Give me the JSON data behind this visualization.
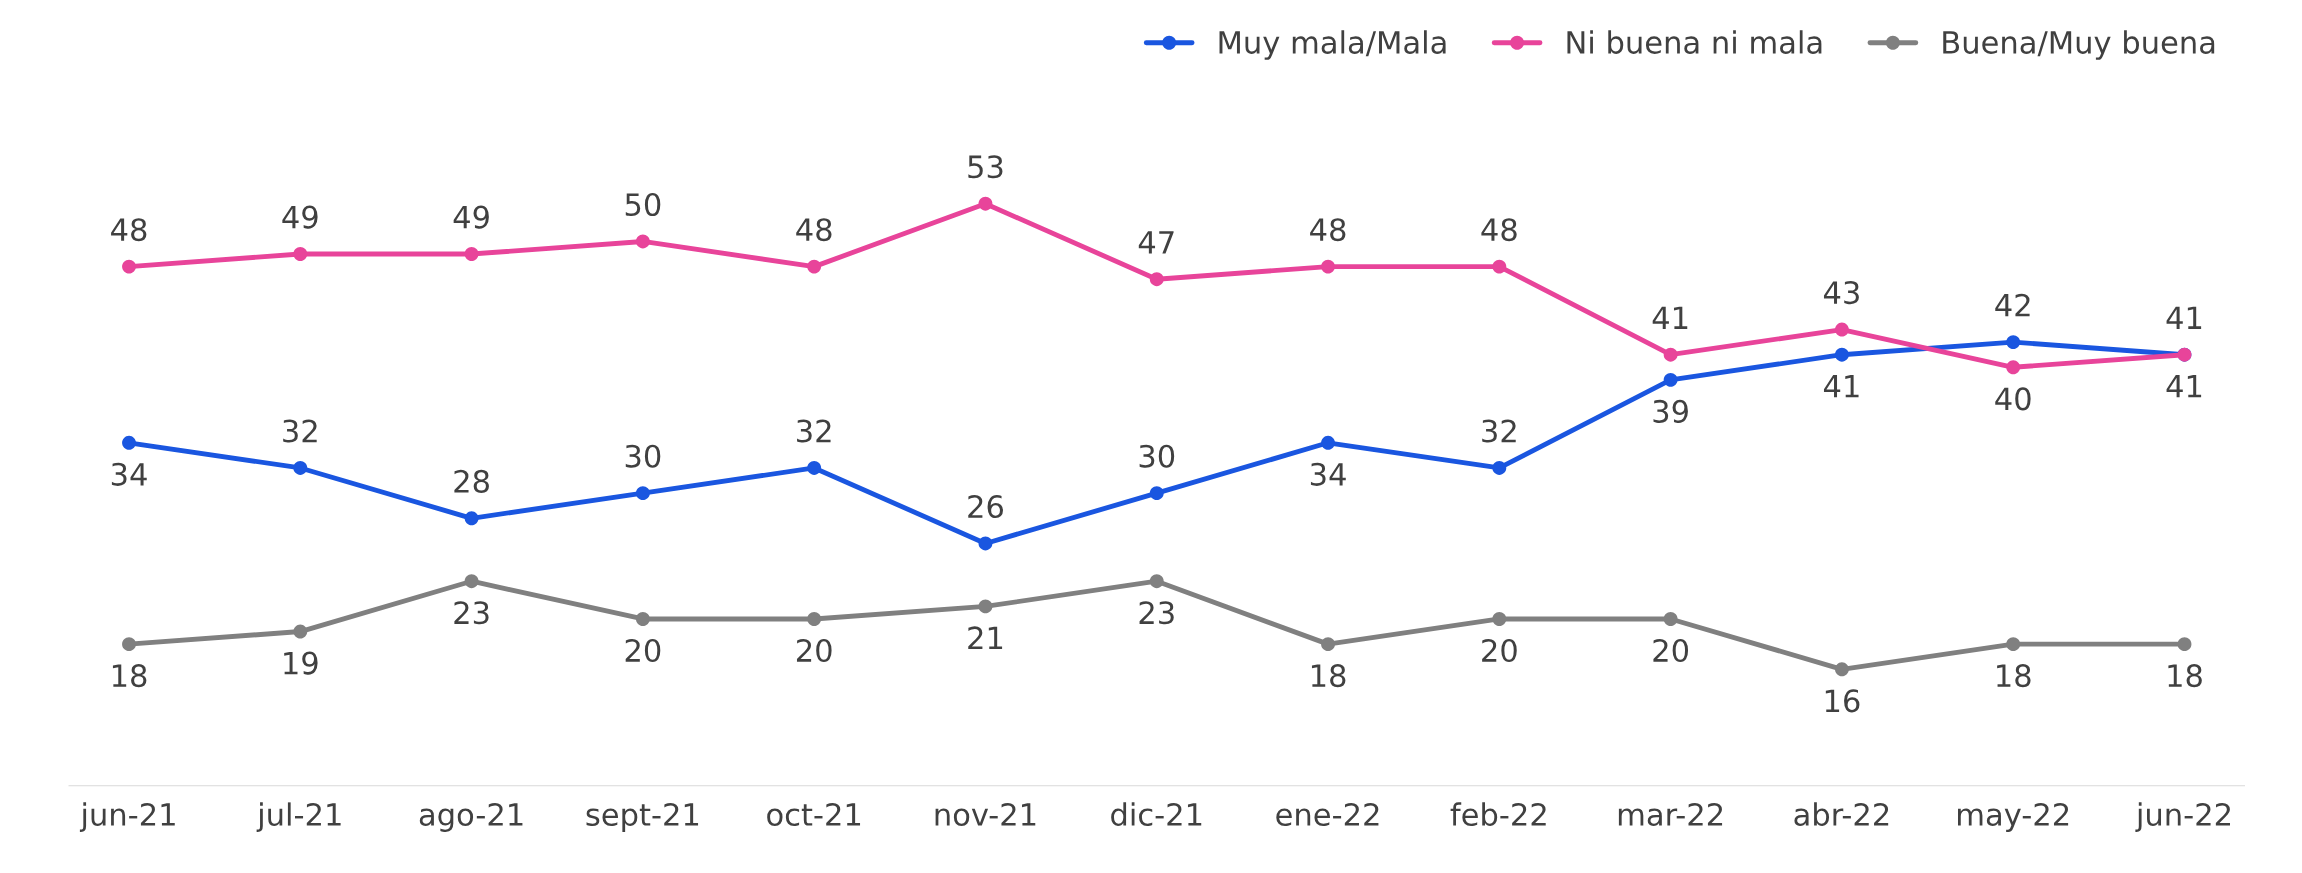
{
  "chart_data": {
    "type": "line",
    "categories": [
      "jun-21",
      "jul-21",
      "ago-21",
      "sept-21",
      "oct-21",
      "nov-21",
      "dic-21",
      "ene-22",
      "feb-22",
      "mar-22",
      "abr-22",
      "may-22",
      "jun-22"
    ],
    "series": [
      {
        "name": "Muy mala/Mala",
        "color": "#1a56e0",
        "values": [
          34,
          32,
          28,
          30,
          32,
          26,
          30,
          34,
          32,
          39,
          41,
          42,
          41
        ]
      },
      {
        "name": "Ni buena ni mala",
        "color": "#e8449a",
        "values": [
          48,
          49,
          49,
          50,
          48,
          53,
          47,
          48,
          48,
          41,
          43,
          40,
          41
        ]
      },
      {
        "name": "Buena/Muy buena",
        "color": "#808080",
        "values": [
          18,
          19,
          23,
          20,
          20,
          21,
          23,
          18,
          20,
          20,
          16,
          18,
          18
        ]
      }
    ],
    "data_labels": true,
    "legend": "top right",
    "grid": false,
    "marker": "circle",
    "line_style": "solid"
  }
}
